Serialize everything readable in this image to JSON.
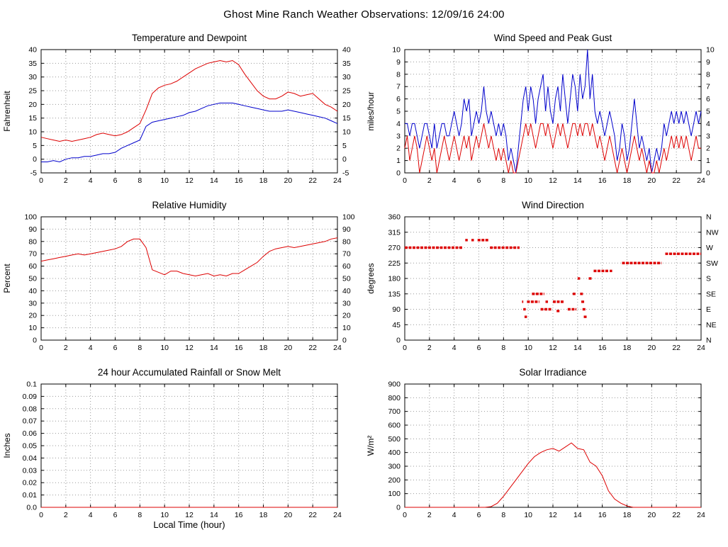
{
  "page": {
    "title": "Ghost Mine Ranch Weather Observations: 12/09/16 24:00"
  },
  "colors": {
    "red": "#dd0000",
    "blue": "#0000cc",
    "grid": "#999999",
    "axis": "#000000"
  },
  "chart_data": [
    {
      "type": "line",
      "title": "Temperature and Dewpoint",
      "ylabel": "Fahrenheit",
      "xlabel": "",
      "xlim": [
        0,
        24
      ],
      "xticks": [
        0,
        2,
        4,
        6,
        8,
        10,
        12,
        14,
        16,
        18,
        20,
        22,
        24
      ],
      "ylim": [
        -5,
        40
      ],
      "yticks": [
        -5,
        0,
        5,
        10,
        15,
        20,
        25,
        30,
        35,
        40
      ],
      "ytick_labels": [
        "-5",
        "0",
        "5",
        "10",
        "15",
        "20",
        "25",
        "30",
        "35",
        "40"
      ],
      "right_labels": [
        "-5",
        "0",
        "5",
        "10",
        "15",
        "20",
        "25",
        "30",
        "35",
        "40"
      ],
      "grid": true,
      "series": [
        {
          "name": "temperature",
          "color": "red",
          "x_start": 0,
          "x_step": 0.5,
          "values": [
            8,
            7.5,
            7,
            6.5,
            7,
            6.5,
            7,
            7.5,
            8,
            9,
            9.5,
            9,
            8.5,
            9,
            10,
            11.5,
            13,
            18,
            24,
            26,
            27,
            27.5,
            28.5,
            30,
            31.5,
            33,
            34,
            35,
            35.5,
            36,
            35.5,
            36,
            34.5,
            31,
            28,
            25,
            23,
            22,
            22,
            23,
            24.5,
            24,
            23,
            23.5,
            24,
            22,
            20,
            19,
            17.5
          ]
        },
        {
          "name": "dewpoint",
          "color": "blue",
          "x_start": 0,
          "x_step": 0.5,
          "values": [
            -1,
            -1,
            -0.5,
            -1,
            0,
            0.5,
            0.5,
            1,
            1,
            1.5,
            2,
            2,
            2.5,
            4,
            5,
            6,
            7,
            12,
            13.5,
            14,
            14.5,
            15,
            15.5,
            16,
            17,
            17.5,
            18.5,
            19.5,
            20,
            20.5,
            20.5,
            20.5,
            20,
            19.5,
            19,
            18.5,
            18,
            17.5,
            17.5,
            17.5,
            18,
            17.5,
            17,
            16.5,
            16,
            15.5,
            15,
            14,
            13
          ]
        }
      ]
    },
    {
      "type": "line",
      "title": "Wind Speed and Peak Gust",
      "ylabel": "miles/hour",
      "xlabel": "",
      "xlim": [
        0,
        24
      ],
      "xticks": [
        0,
        2,
        4,
        6,
        8,
        10,
        12,
        14,
        16,
        18,
        20,
        22,
        24
      ],
      "ylim": [
        0,
        10
      ],
      "yticks": [
        0,
        1,
        2,
        3,
        4,
        5,
        6,
        7,
        8,
        9,
        10
      ],
      "ytick_labels": [
        "0",
        "1",
        "2",
        "3",
        "4",
        "5",
        "6",
        "7",
        "8",
        "9",
        "10"
      ],
      "right_labels": [
        "0",
        "1",
        "2",
        "3",
        "4",
        "5",
        "6",
        "7",
        "8",
        "9",
        "10"
      ],
      "grid": true,
      "series": [
        {
          "name": "peak-gust",
          "color": "blue",
          "x_start": 0,
          "x_step": 0.2,
          "values": [
            4,
            4,
            3,
            4,
            4,
            3,
            2,
            3,
            4,
            4,
            3,
            2,
            4,
            2,
            3,
            4,
            4,
            3,
            3,
            4,
            5,
            4,
            3,
            4,
            6,
            5,
            6,
            3,
            4,
            5,
            4,
            5,
            7,
            5,
            4,
            5,
            4,
            3,
            4,
            3,
            4,
            3,
            1,
            2,
            1,
            0,
            2,
            4,
            6,
            7,
            5,
            7,
            6,
            4,
            6,
            7,
            8,
            5,
            7,
            5,
            4,
            6,
            7,
            5,
            8,
            6,
            4,
            6,
            8,
            7,
            5,
            8,
            6,
            7,
            10,
            6,
            8,
            5,
            4,
            5,
            4,
            3,
            4,
            5,
            4,
            3,
            1,
            2,
            4,
            3,
            1,
            2,
            4,
            6,
            4,
            2,
            3,
            2,
            1,
            2,
            0,
            1,
            2,
            1,
            2,
            4,
            3,
            4,
            5,
            4,
            5,
            4,
            5,
            4,
            5,
            4,
            3,
            4,
            5,
            4,
            5
          ]
        },
        {
          "name": "wind-speed",
          "color": "red",
          "x_start": 0,
          "x_step": 0.2,
          "values": [
            2,
            3,
            1,
            2,
            3,
            2,
            0,
            1,
            2,
            3,
            2,
            1,
            2,
            0,
            1,
            2,
            3,
            2,
            1,
            2,
            3,
            2,
            1,
            2,
            3,
            2,
            3,
            1,
            2,
            3,
            2,
            3,
            4,
            3,
            2,
            3,
            2,
            1,
            2,
            1,
            2,
            1,
            0,
            1,
            0,
            0,
            1,
            2,
            3,
            4,
            3,
            4,
            3,
            2,
            3,
            4,
            4,
            3,
            4,
            3,
            2,
            3,
            4,
            3,
            4,
            3,
            2,
            3,
            4,
            4,
            3,
            4,
            3,
            4,
            4,
            3,
            4,
            3,
            2,
            3,
            2,
            1,
            2,
            3,
            2,
            1,
            0,
            1,
            2,
            1,
            0,
            1,
            2,
            3,
            2,
            1,
            2,
            1,
            0,
            1,
            0,
            0,
            1,
            0,
            1,
            2,
            1,
            2,
            3,
            2,
            3,
            2,
            3,
            2,
            3,
            2,
            1,
            2,
            3,
            2,
            2
          ]
        }
      ]
    },
    {
      "type": "line",
      "title": "Relative Humidity",
      "ylabel": "Percent",
      "xlabel": "",
      "xlim": [
        0,
        24
      ],
      "xticks": [
        0,
        2,
        4,
        6,
        8,
        10,
        12,
        14,
        16,
        18,
        20,
        22,
        24
      ],
      "ylim": [
        0,
        100
      ],
      "yticks": [
        0,
        10,
        20,
        30,
        40,
        50,
        60,
        70,
        80,
        90,
        100
      ],
      "ytick_labels": [
        "0",
        "10",
        "20",
        "30",
        "40",
        "50",
        "60",
        "70",
        "80",
        "90",
        "100"
      ],
      "right_labels": [
        "0",
        "10",
        "20",
        "30",
        "40",
        "50",
        "60",
        "70",
        "80",
        "90",
        "100"
      ],
      "grid": true,
      "series": [
        {
          "name": "relative-humidity",
          "color": "red",
          "x_start": 0,
          "x_step": 0.5,
          "values": [
            64,
            65,
            66,
            67,
            68,
            69,
            70,
            69,
            70,
            71,
            72,
            73,
            74,
            76,
            80,
            82,
            82,
            75,
            57,
            55,
            53,
            56,
            56,
            54,
            53,
            52,
            53,
            54,
            52,
            53,
            52,
            54,
            54,
            57,
            60,
            63,
            68,
            72,
            74,
            75,
            76,
            75,
            76,
            77,
            78,
            79,
            80,
            82,
            83
          ]
        }
      ]
    },
    {
      "type": "segments",
      "title": "Wind Direction",
      "ylabel": "degrees",
      "xlabel": "",
      "xlim": [
        0,
        24
      ],
      "xticks": [
        0,
        2,
        4,
        6,
        8,
        10,
        12,
        14,
        16,
        18,
        20,
        22,
        24
      ],
      "ylim": [
        0,
        360
      ],
      "yticks": [
        0,
        45,
        90,
        135,
        180,
        225,
        270,
        315,
        360
      ],
      "ytick_labels": [
        "0",
        "45",
        "90",
        "135",
        "180",
        "225",
        "270",
        "315",
        "360"
      ],
      "right_labels": [
        "N",
        "NE",
        "E",
        "SE",
        "S",
        "SW",
        "W",
        "NW",
        "N"
      ],
      "grid": true,
      "color": "red",
      "segments": [
        [
          0,
          4.7,
          270
        ],
        [
          4.9,
          5.1,
          292
        ],
        [
          5.4,
          5.6,
          292
        ],
        [
          5.9,
          6.8,
          292
        ],
        [
          6.9,
          9.3,
          270
        ],
        [
          9.5,
          9.6,
          112
        ],
        [
          9.6,
          9.8,
          90
        ],
        [
          9.7,
          9.9,
          68
        ],
        [
          9.9,
          10.9,
          112
        ],
        [
          10.3,
          11.3,
          135
        ],
        [
          11.0,
          11.9,
          90
        ],
        [
          11.4,
          11.6,
          112
        ],
        [
          12.0,
          12.9,
          112
        ],
        [
          12.3,
          12.6,
          85
        ],
        [
          13.2,
          13.9,
          90
        ],
        [
          13.6,
          13.9,
          135
        ],
        [
          14.0,
          14.2,
          180
        ],
        [
          14.2,
          14.5,
          135
        ],
        [
          14.3,
          14.6,
          112
        ],
        [
          14.4,
          14.7,
          90
        ],
        [
          14.5,
          14.8,
          68
        ],
        [
          14.9,
          15.2,
          180
        ],
        [
          15.3,
          16.5,
          202
        ],
        [
          16.6,
          16.8,
          202
        ],
        [
          17.6,
          20.8,
          225
        ],
        [
          21.1,
          24.0,
          252
        ]
      ]
    },
    {
      "type": "line",
      "title": "24 hour Accumulated Rainfall or Snow Melt",
      "ylabel": "Inches",
      "xlabel": "Local Time (hour)",
      "xlim": [
        0,
        24
      ],
      "xticks": [
        0,
        2,
        4,
        6,
        8,
        10,
        12,
        14,
        16,
        18,
        20,
        22,
        24
      ],
      "ylim": [
        0,
        0.1
      ],
      "yticks": [
        0,
        0.01,
        0.02,
        0.03,
        0.04,
        0.05,
        0.06,
        0.07,
        0.08,
        0.09,
        0.1
      ],
      "ytick_labels": [
        "0.0",
        "0.01",
        "0.02",
        "0.03",
        "0.04",
        "0.05",
        "0.06",
        "0.07",
        "0.08",
        "0.09",
        "0.1"
      ],
      "right_labels": null,
      "grid": true,
      "series": [
        {
          "name": "accumulated-rainfall",
          "color": "red",
          "x_start": 0,
          "x_step": 24,
          "values": [
            0,
            0
          ]
        }
      ]
    },
    {
      "type": "line",
      "title": "Solar Irradiance",
      "ylabel": "W/m²",
      "xlabel": "",
      "xlim": [
        0,
        24
      ],
      "xticks": [
        0,
        2,
        4,
        6,
        8,
        10,
        12,
        14,
        16,
        18,
        20,
        22,
        24
      ],
      "ylim": [
        0,
        900
      ],
      "yticks": [
        0,
        100,
        200,
        300,
        400,
        500,
        600,
        700,
        800,
        900
      ],
      "ytick_labels": [
        "0",
        "100",
        "200",
        "300",
        "400",
        "500",
        "600",
        "700",
        "800",
        "900"
      ],
      "right_labels": null,
      "grid": true,
      "series": [
        {
          "name": "solar-irradiance",
          "color": "red",
          "x_start": 0,
          "x_step": 0.5,
          "values": [
            0,
            0,
            0,
            0,
            0,
            0,
            0,
            0,
            0,
            0,
            0,
            0,
            0,
            0,
            5,
            30,
            80,
            140,
            200,
            260,
            320,
            370,
            400,
            420,
            430,
            410,
            440,
            470,
            430,
            420,
            330,
            300,
            230,
            120,
            60,
            30,
            10,
            0,
            0,
            0,
            0,
            0,
            0,
            0,
            0,
            0,
            0,
            0,
            0
          ]
        }
      ]
    }
  ]
}
